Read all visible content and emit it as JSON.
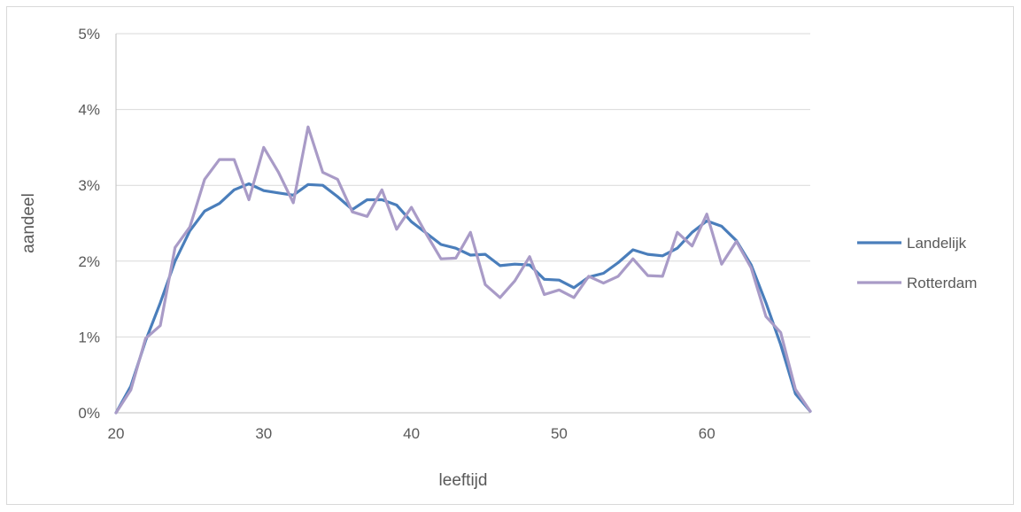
{
  "chart_data": {
    "type": "line",
    "xlabel": "leeftijd",
    "ylabel": "aandeel",
    "xlim": [
      20,
      67
    ],
    "ylim": [
      0,
      5
    ],
    "x_ticks": [
      20,
      30,
      40,
      50,
      60
    ],
    "y_ticks": [
      "0%",
      "1%",
      "2%",
      "3%",
      "4%",
      "5%"
    ],
    "grid": true,
    "legend_position": "right",
    "x": [
      20,
      21,
      22,
      23,
      24,
      25,
      26,
      27,
      28,
      29,
      30,
      31,
      32,
      33,
      34,
      35,
      36,
      37,
      38,
      39,
      40,
      41,
      42,
      43,
      44,
      45,
      46,
      47,
      48,
      49,
      50,
      51,
      52,
      53,
      54,
      55,
      56,
      57,
      58,
      59,
      60,
      61,
      62,
      63,
      64,
      65,
      66,
      67
    ],
    "series": [
      {
        "name": "Landelijk",
        "color": "#4a7ebb",
        "values": [
          0.0,
          0.35,
          0.95,
          1.45,
          2.0,
          2.4,
          2.66,
          2.76,
          2.94,
          3.02,
          2.93,
          2.9,
          2.87,
          3.01,
          3.0,
          2.85,
          2.68,
          2.81,
          2.81,
          2.74,
          2.52,
          2.37,
          2.22,
          2.17,
          2.08,
          2.09,
          1.94,
          1.96,
          1.95,
          1.76,
          1.75,
          1.65,
          1.79,
          1.84,
          1.98,
          2.15,
          2.09,
          2.07,
          2.17,
          2.38,
          2.53,
          2.46,
          2.27,
          1.95,
          1.45,
          0.9,
          0.25,
          0.02
        ]
      },
      {
        "name": "Rotterdam",
        "color": "#a99bc7",
        "values": [
          0.0,
          0.3,
          0.98,
          1.15,
          2.18,
          2.45,
          3.08,
          3.34,
          3.34,
          2.81,
          3.5,
          3.17,
          2.77,
          3.77,
          3.17,
          3.08,
          2.65,
          2.59,
          2.94,
          2.42,
          2.71,
          2.36,
          2.03,
          2.04,
          2.38,
          1.69,
          1.52,
          1.74,
          2.06,
          1.56,
          1.62,
          1.52,
          1.8,
          1.71,
          1.8,
          2.03,
          1.81,
          1.8,
          2.38,
          2.2,
          2.62,
          1.96,
          2.26,
          1.91,
          1.27,
          1.06,
          0.31,
          0.02
        ]
      }
    ]
  }
}
